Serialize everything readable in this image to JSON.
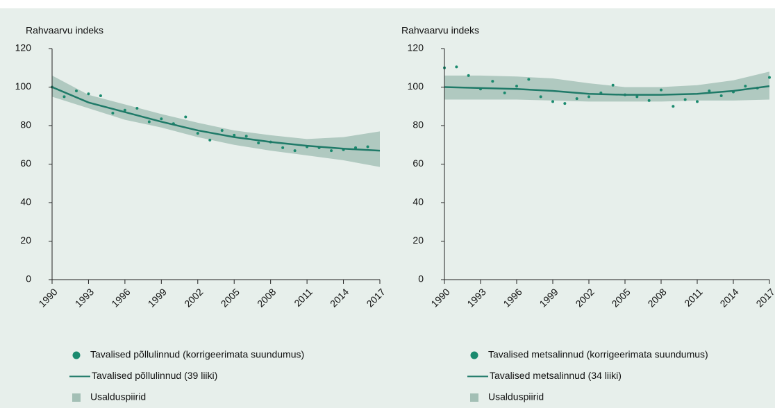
{
  "chart_data": [
    {
      "type": "line",
      "y_label": "Rahvaarvu indeks",
      "xlim": [
        1990,
        2017
      ],
      "xticks": [
        1990,
        1993,
        1996,
        1999,
        2002,
        2005,
        2008,
        2011,
        2014,
        2017
      ],
      "ylim": [
        0,
        120
      ],
      "yticks": [
        0,
        20,
        40,
        60,
        80,
        100,
        120
      ],
      "series": [
        {
          "name": "Tavalised põllulinnud (korrigeerimata suundumus)",
          "marker": "dot",
          "color": "#1a8a6e",
          "x": [
            1990,
            1991,
            1992,
            1993,
            1994,
            1995,
            1996,
            1997,
            1998,
            1999,
            2000,
            2001,
            2002,
            2003,
            2004,
            2005,
            2006,
            2007,
            2008,
            2009,
            2010,
            2011,
            2012,
            2013,
            2014,
            2015,
            2016
          ],
          "values": [
            100,
            95,
            98,
            96.5,
            95.5,
            86.5,
            88,
            89,
            82,
            83.5,
            81,
            84.5,
            76,
            72.5,
            77.5,
            75,
            74.5,
            71,
            71.5,
            68.5,
            67,
            69,
            68.5,
            67,
            67.5,
            68.5,
            69
          ]
        },
        {
          "name": "Tavalised põllulinnud (39 liiki)",
          "marker": "line",
          "color": "#1f7a68",
          "x": [
            1990,
            1993,
            1996,
            1999,
            2002,
            2005,
            2008,
            2011,
            2014,
            2017
          ],
          "values": [
            100,
            92,
            87,
            82,
            77.5,
            74,
            71.5,
            69.5,
            68,
            67
          ]
        },
        {
          "name": "Usalduspiirid",
          "marker": "band",
          "color": "#a3bfb5",
          "x": [
            1990,
            1993,
            1996,
            1999,
            2002,
            2005,
            2008,
            2011,
            2014,
            2017
          ],
          "lower": [
            95,
            89,
            83,
            79,
            74,
            70,
            67,
            64.5,
            62,
            58.5
          ],
          "upper": [
            106,
            96,
            91,
            86,
            81.5,
            77.5,
            75,
            73,
            74,
            77
          ]
        }
      ]
    },
    {
      "type": "line",
      "y_label": "Rahvaarvu indeks",
      "xlim": [
        1990,
        2017
      ],
      "xticks": [
        1990,
        1993,
        1996,
        1999,
        2002,
        2005,
        2008,
        2011,
        2014,
        2017
      ],
      "ylim": [
        0,
        120
      ],
      "yticks": [
        0,
        20,
        40,
        60,
        80,
        100,
        120
      ],
      "series": [
        {
          "name": "Tavalised metsalinnud (korrigeerimata suundumus)",
          "marker": "dot",
          "color": "#1a8a6e",
          "x": [
            1990,
            1991,
            1992,
            1993,
            1994,
            1995,
            1996,
            1997,
            1998,
            1999,
            2000,
            2001,
            2002,
            2003,
            2004,
            2005,
            2006,
            2007,
            2008,
            2009,
            2010,
            2011,
            2012,
            2013,
            2014,
            2015,
            2016,
            2017
          ],
          "values": [
            110,
            110.5,
            106,
            99,
            103,
            97,
            100.5,
            104,
            95,
            92.5,
            91.5,
            94,
            95,
            97,
            101,
            96,
            95,
            93,
            98.5,
            90,
            93.5,
            92.5,
            98,
            95.5,
            97.5,
            100.5,
            99.5,
            105
          ]
        },
        {
          "name": "Tavalised metsalinnud (34 liiki)",
          "marker": "line",
          "color": "#1f7a68",
          "x": [
            1990,
            1993,
            1996,
            1999,
            2002,
            2005,
            2008,
            2011,
            2014,
            2017
          ],
          "values": [
            100,
            99.5,
            99,
            98,
            96.5,
            96,
            96,
            96.5,
            98,
            100.5
          ]
        },
        {
          "name": "Usalduspiirid",
          "marker": "band",
          "color": "#a3bfb5",
          "x": [
            1990,
            1993,
            1996,
            1999,
            2002,
            2005,
            2008,
            2011,
            2014,
            2017
          ],
          "lower": [
            93.5,
            93.5,
            93.5,
            93,
            92.5,
            92.5,
            92.5,
            93,
            93,
            93.5
          ],
          "upper": [
            106,
            106,
            105.5,
            104.5,
            102,
            100,
            100,
            101,
            103.5,
            108
          ]
        }
      ]
    }
  ]
}
